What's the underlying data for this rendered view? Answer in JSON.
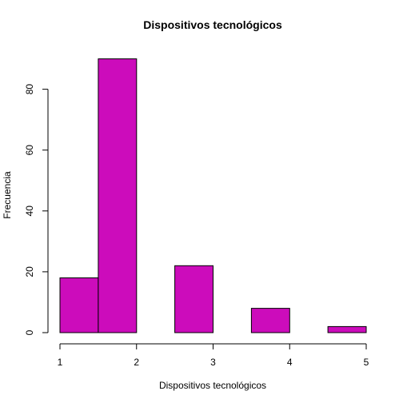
{
  "chart_data": {
    "type": "bar",
    "title": "Dispositivos tecnológicos",
    "xlabel": "Dispositivos tecnológicos",
    "ylabel": "Frecuencia",
    "bins": [
      {
        "start": 1.0,
        "end": 1.5,
        "value": 18
      },
      {
        "start": 1.5,
        "end": 2.0,
        "value": 90
      },
      {
        "start": 2.0,
        "end": 2.5,
        "value": 0
      },
      {
        "start": 2.5,
        "end": 3.0,
        "value": 22
      },
      {
        "start": 3.0,
        "end": 3.5,
        "value": 0
      },
      {
        "start": 3.5,
        "end": 4.0,
        "value": 8
      },
      {
        "start": 4.0,
        "end": 4.5,
        "value": 0
      },
      {
        "start": 4.5,
        "end": 5.0,
        "value": 2
      }
    ],
    "xlim": [
      1,
      5
    ],
    "ylim": [
      0,
      90
    ],
    "xticks": [
      1,
      2,
      3,
      4,
      5
    ],
    "yticks": [
      0,
      20,
      40,
      60,
      80
    ],
    "bar_color": "#cc0cbb",
    "grid": false,
    "legend": "none"
  }
}
